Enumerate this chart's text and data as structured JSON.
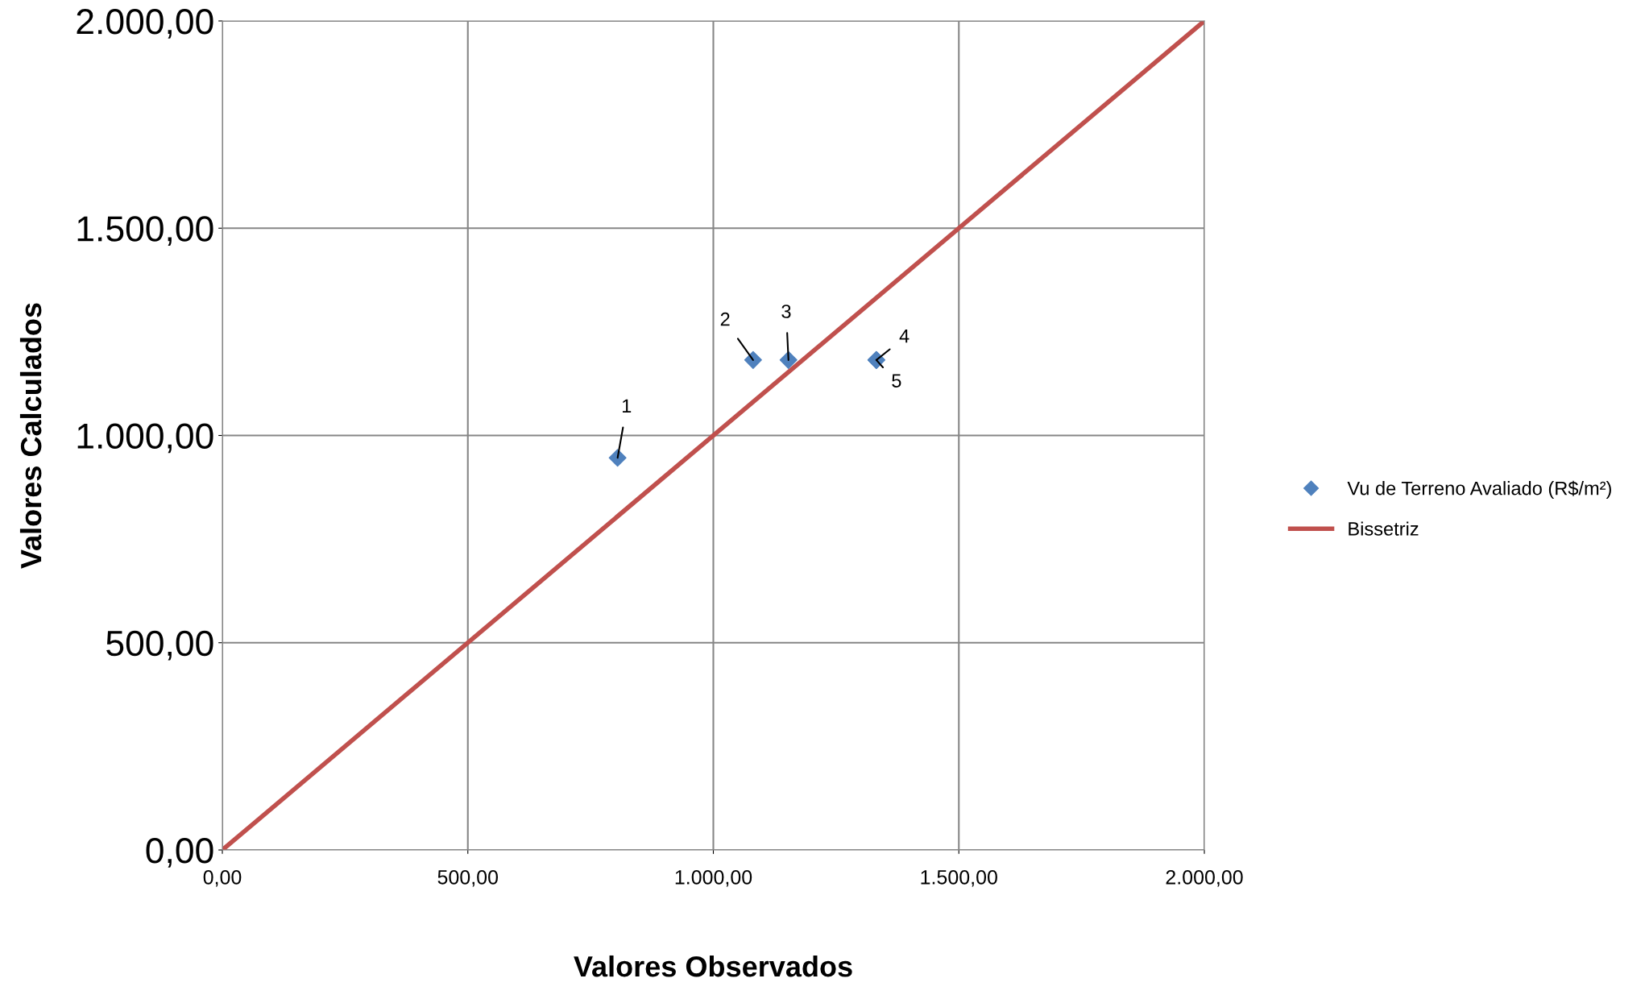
{
  "chart_data": {
    "type": "scatter",
    "xlabel": "Valores Observados",
    "ylabel": "Valores Calculados",
    "series": [
      {
        "name": "Vu de Terreno Avaliado (R$/m²)",
        "color": "#4f81bd",
        "marker": "diamond",
        "x": [
          805,
          1081,
          1153,
          1332,
          1332
        ],
        "values": [
          946,
          1182,
          1182,
          1182,
          1182
        ]
      },
      {
        "name": "Bissetriz",
        "type": "line",
        "color": "#c0504d",
        "marker": "none",
        "line_style": "solid",
        "x": [
          0,
          2000
        ],
        "values": [
          0,
          2000
        ]
      }
    ],
    "annotations": [
      {
        "text": "1",
        "x": 805,
        "y": 946
      },
      {
        "text": "2",
        "x": 1081,
        "y": 1182
      },
      {
        "text": "3",
        "x": 1153,
        "y": 1182
      },
      {
        "text": "4",
        "x": 1332,
        "y": 1182
      },
      {
        "text": "5",
        "x": 1332,
        "y": 1182
      }
    ],
    "xlim": [
      0,
      2000
    ],
    "ylim": [
      0,
      2000
    ],
    "xticks": [
      {
        "value": 0,
        "label": "0,00"
      },
      {
        "value": 500,
        "label": "500,00"
      },
      {
        "value": 1000,
        "label": "1.000,00"
      },
      {
        "value": 1500,
        "label": "1.500,00"
      },
      {
        "value": 2000,
        "label": "2.000,00"
      }
    ],
    "yticks": [
      {
        "value": 0,
        "label": "0,00"
      },
      {
        "value": 500,
        "label": "500,00"
      },
      {
        "value": 1000,
        "label": "1.000,00"
      },
      {
        "value": 1500,
        "label": "1.500,00"
      },
      {
        "value": 2000,
        "label": "2.000,00"
      }
    ],
    "grid": true,
    "legend": "right"
  }
}
